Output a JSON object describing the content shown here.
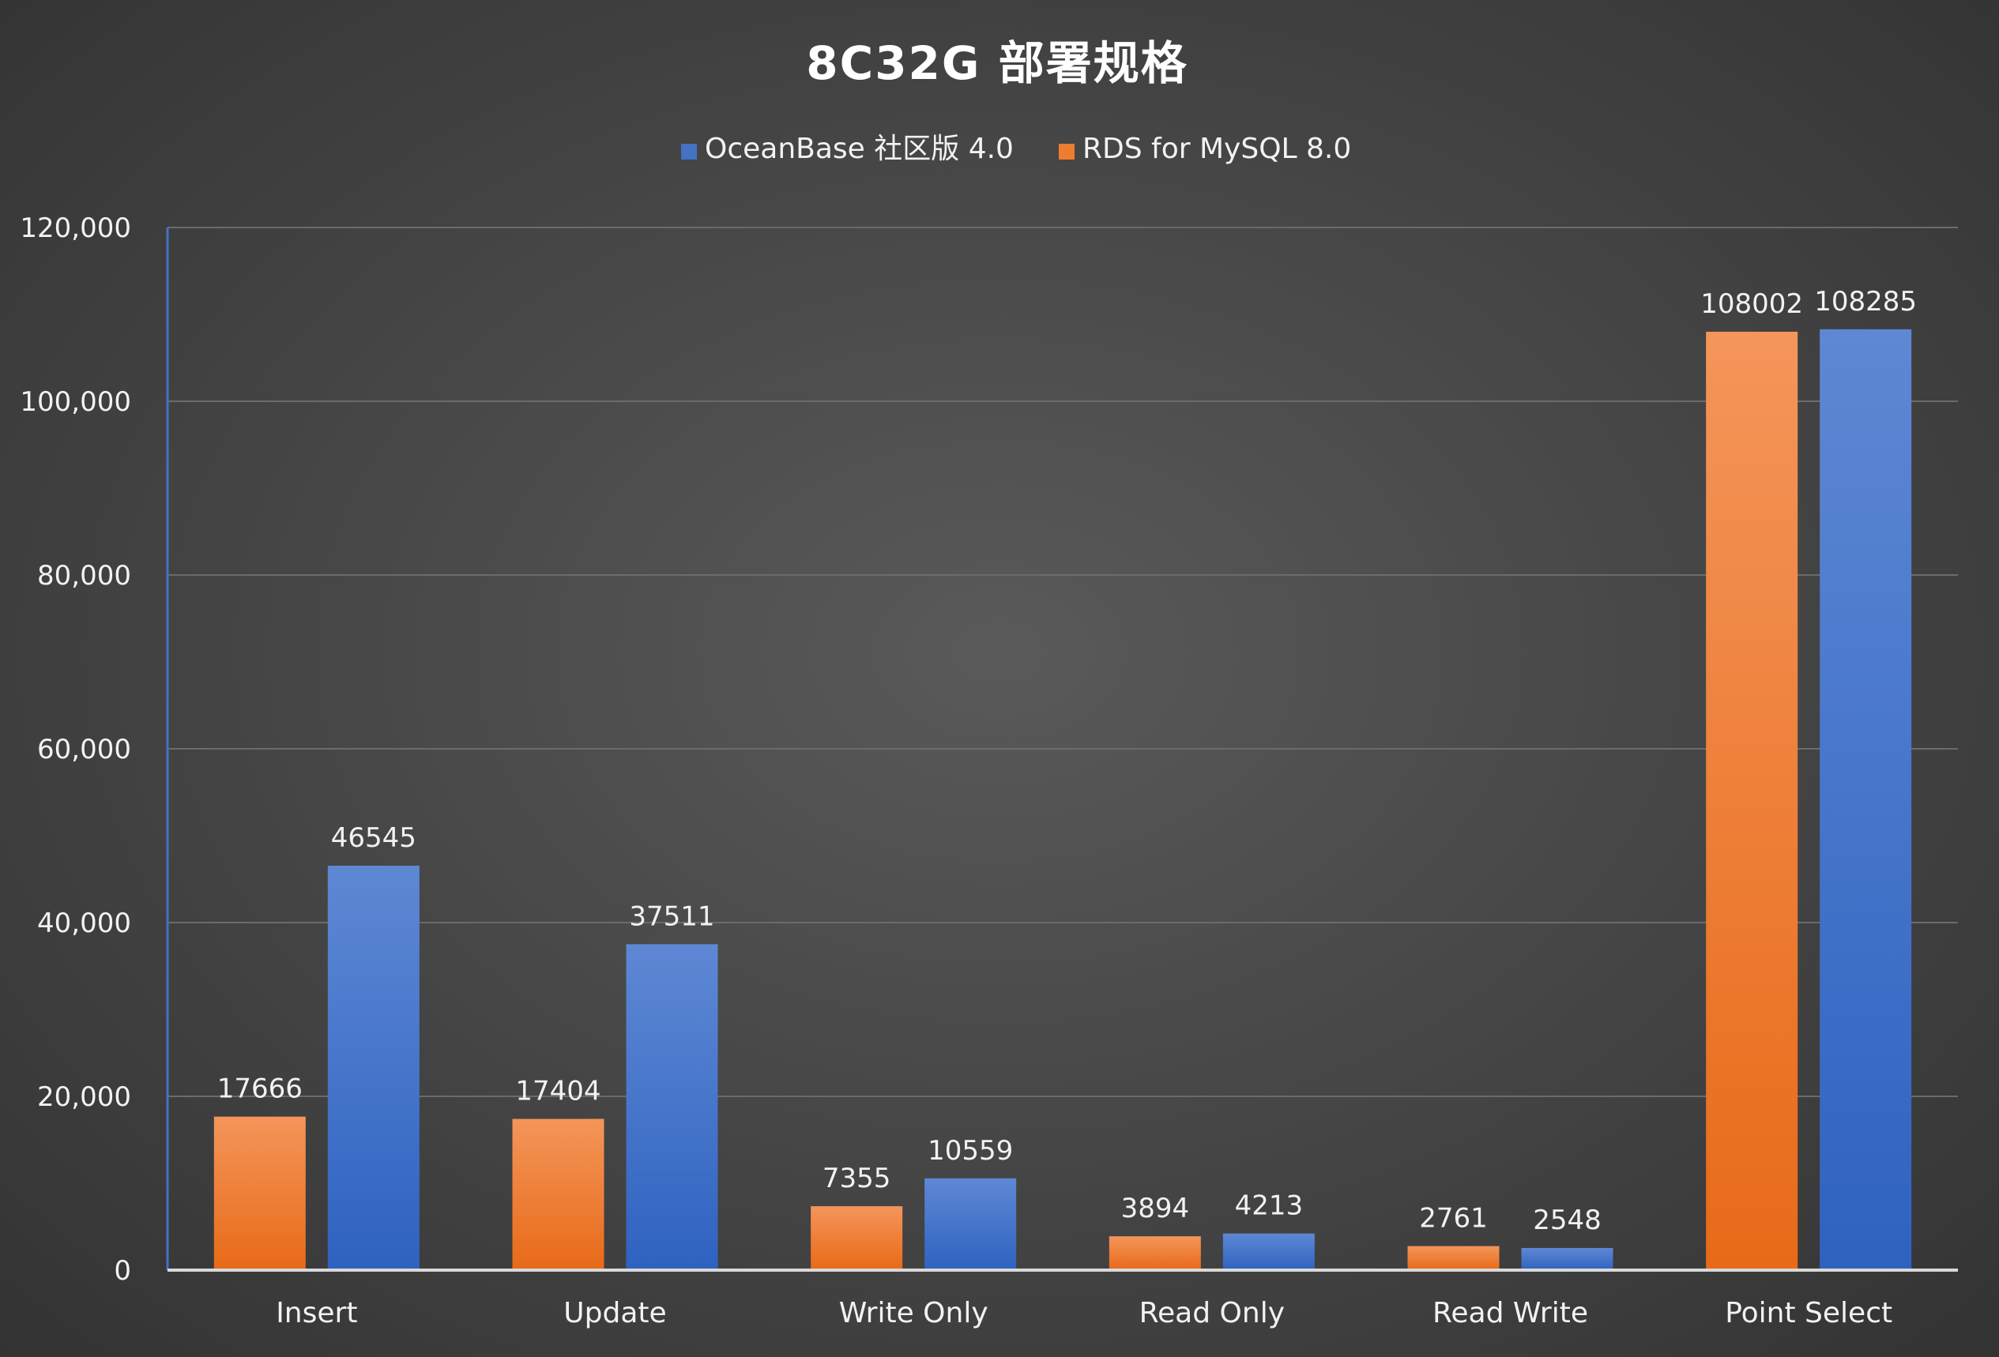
{
  "chart_data": {
    "type": "bar",
    "title": "8C32G 部署规格",
    "categories": [
      "Insert",
      "Update",
      "Write Only",
      "Read Only",
      "Read Write",
      "Point Select"
    ],
    "series": [
      {
        "name": "RDS for MySQL 8.0",
        "color": "#ed7d31",
        "values": [
          17666,
          17404,
          7355,
          3894,
          2761,
          108002
        ]
      },
      {
        "name": "OceanBase 社区版 4.0",
        "color": "#4472c4",
        "values": [
          46545,
          37511,
          10559,
          4213,
          2548,
          108285
        ]
      }
    ],
    "legend": {
      "placement": "top-center",
      "order": [
        "OceanBase 社区版 4.0",
        "RDS for MySQL 8.0"
      ]
    },
    "yticks": [
      "0",
      "20,000",
      "40,000",
      "60,000",
      "80,000",
      "100,000",
      "120,000"
    ],
    "ylim": [
      0,
      120000
    ],
    "grid": true,
    "data_labels": true,
    "xlabel": "",
    "ylabel": ""
  }
}
